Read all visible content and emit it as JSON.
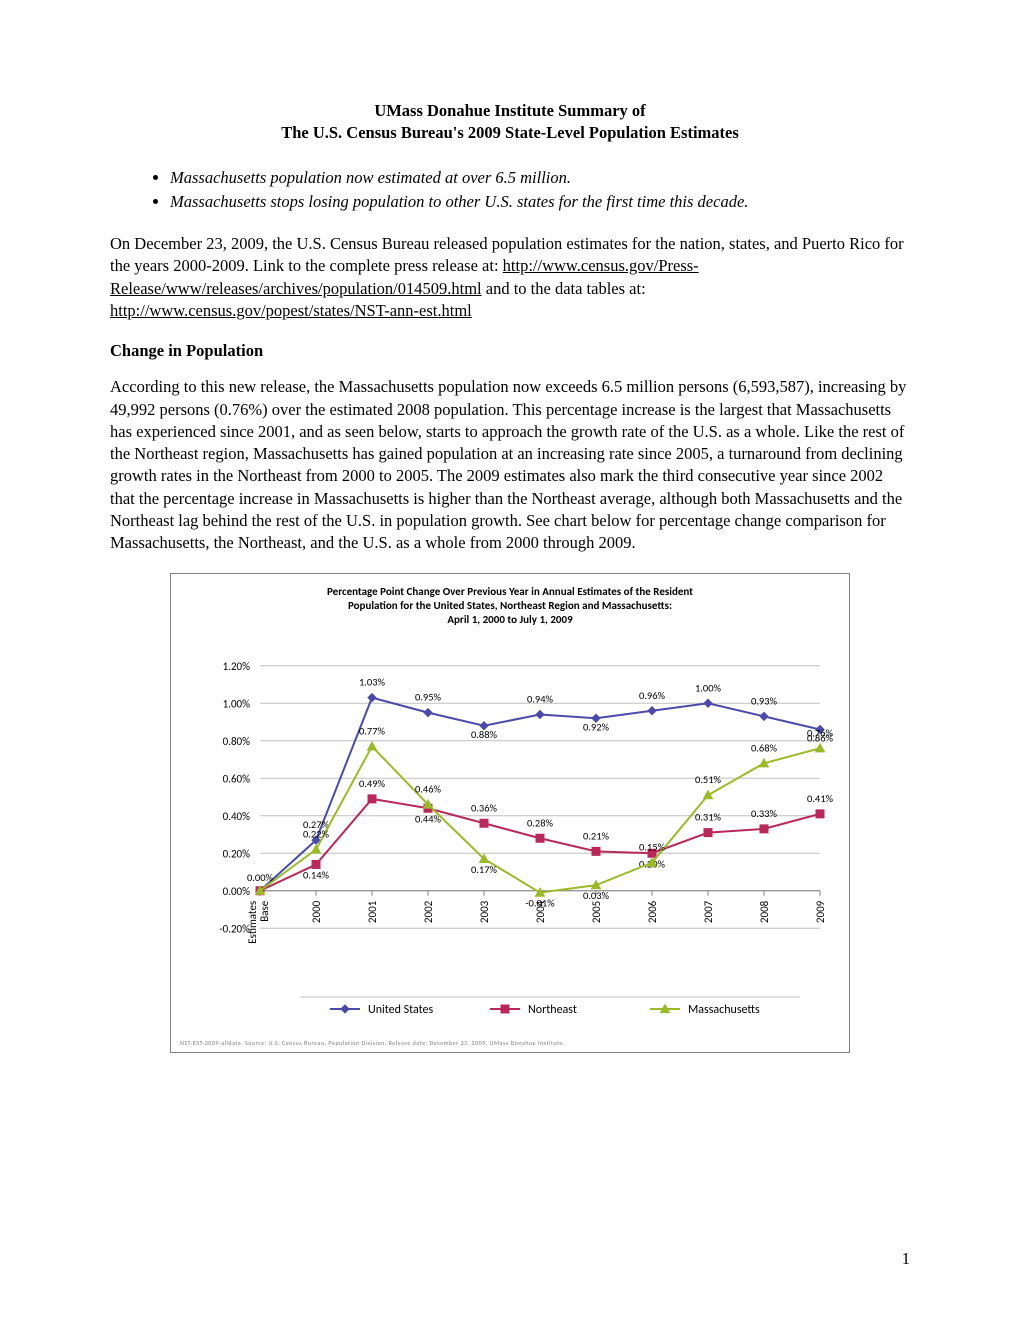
{
  "title": {
    "line1": "UMass Donahue Institute Summary of",
    "line2": "The U.S. Census Bureau's 2009 State-Level Population Estimates"
  },
  "bullets": [
    "Massachusetts population now estimated at over 6.5 million.",
    "Massachusetts stops losing population to other U.S. states for the first time this decade."
  ],
  "intro": {
    "pre": "On December 23, 2009, the U.S. Census Bureau released population estimates for the nation, states, and Puerto Rico for the years 2000-2009.  Link to the complete press release at: ",
    "link1": "http://www.census.gov/Press-Release/www/releases/archives/population/014509.html",
    "mid": " and to the data tables at: ",
    "link2": "http://www.census.gov/popest/states/NST-ann-est.html"
  },
  "section_head": "Change in Population",
  "body_para": "According to this new release, the Massachusetts population now exceeds 6.5 million persons (6,593,587), increasing by 49,992 persons (0.76%) over the estimated 2008 population. This percentage increase is the largest that Massachusetts has experienced since 2001, and as seen below, starts to approach the growth rate of the U.S. as a whole.  Like the rest of the Northeast region, Massachusetts has gained population at an increasing rate since 2005, a turnaround from declining growth rates in the Northeast from 2000 to 2005.  The 2009 estimates also mark the third consecutive year since 2002 that the percentage increase in Massachusetts is higher than the Northeast average, although both Massachusetts and the Northeast lag behind the rest of the U.S. in population growth. See chart below for percentage change comparison for Massachusetts, the Northeast, and the U.S. as a whole from 2000 through 2009.",
  "chart": {
    "type": "line",
    "title_lines": [
      "Percentage Point Change Over Previous Year in Annual Estimates of the Resident",
      "Population for the United States, Northeast Region and Massachusetts:",
      "April 1, 2000 to July 1, 2009"
    ],
    "title_fontsize": 11,
    "title_fontweight": "bold",
    "title_fontfamily": "Calibri, Arial, sans-serif",
    "categories": [
      "Estimates Base",
      "2000",
      "2001",
      "2002",
      "2003",
      "2004",
      "2005",
      "2006",
      "2007",
      "2008",
      "2009"
    ],
    "category_fontsize": 11,
    "category_rotation": -90,
    "ytick_values": [
      -0.2,
      0.0,
      0.2,
      0.4,
      0.6,
      0.8,
      1.0,
      1.2
    ],
    "ytick_labels": [
      "-0.20%",
      "0.00%",
      "0.20%",
      "0.40%",
      "0.60%",
      "0.80%",
      "1.00%",
      "1.20%"
    ],
    "ylim": [
      -0.3,
      1.3
    ],
    "grid_color": "#bfbfbf",
    "axis_color": "#808080",
    "background": "#ffffff",
    "border_color": "#808080",
    "legend": {
      "items": [
        "United States",
        "Northeast",
        "Massachusetts"
      ],
      "position": "bottom",
      "fontsize": 12
    },
    "source_note": "NST-EST-2009-alldata. Source: U.S. Census Bureau, Population Division. Release date: December 23, 2009. UMass Donahue Institute.",
    "source_fontsize": 6,
    "source_color": "#7f7f7f",
    "series": [
      {
        "name": "United States",
        "color": "#4a4aa8",
        "marker": "diamond",
        "marker_size": 8,
        "line_width": 2,
        "values": [
          0.0,
          0.27,
          1.03,
          0.95,
          0.88,
          0.94,
          0.92,
          0.96,
          1.0,
          0.93,
          0.86
        ],
        "labels": [
          "0.00%",
          "0.27%",
          "1.03%",
          "0.95%",
          "0.88%",
          "0.94%",
          "0.92%",
          "0.96%",
          "1.00%",
          "0.93%",
          "0.86%"
        ],
        "label_dy": [
          -10,
          -12,
          -12,
          -12,
          12,
          -12,
          12,
          -12,
          -12,
          -12,
          12
        ]
      },
      {
        "name": "Northeast",
        "color": "#b8295a",
        "marker": "square",
        "marker_size": 8,
        "line_width": 2,
        "values": [
          0.0,
          0.14,
          0.49,
          0.44,
          0.36,
          0.28,
          0.21,
          0.2,
          0.31,
          0.33,
          0.41
        ],
        "labels": [
          "",
          "0.14%",
          "0.49%",
          "0.44%",
          "0.36%",
          "0.28%",
          "0.21%",
          "0.20%",
          "0.31%",
          "0.33%",
          "0.41%"
        ],
        "label_dy": [
          0,
          14,
          -12,
          14,
          -12,
          -12,
          -12,
          14,
          -12,
          -12,
          -12
        ]
      },
      {
        "name": "Massachusetts",
        "color": "#9aba2a",
        "marker": "triangle",
        "marker_size": 9,
        "line_width": 2,
        "values": [
          0.0,
          0.22,
          0.77,
          0.46,
          0.17,
          -0.01,
          0.03,
          0.15,
          0.51,
          0.68,
          0.76
        ],
        "labels": [
          "",
          "0.22%",
          "0.77%",
          "0.46%",
          "0.17%",
          "-0.01%",
          "0.03%",
          "0.15%",
          "0.51%",
          "0.68%",
          "0.76%"
        ],
        "label_dy": [
          0,
          -12,
          -12,
          -12,
          14,
          14,
          14,
          -12,
          -12,
          -12,
          -12
        ]
      }
    ]
  },
  "page_num": "1"
}
